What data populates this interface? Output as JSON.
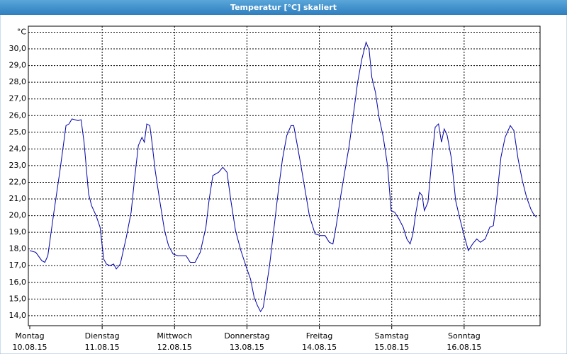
{
  "chart_data": {
    "type": "line",
    "title": "Temperatur [°C] skaliert",
    "y_unit": "°C",
    "x": [
      0,
      2,
      4,
      5,
      6,
      8,
      10,
      12,
      13,
      14,
      16,
      17,
      18,
      19.5,
      20.5,
      22,
      23.3,
      24.5,
      25.4,
      26.6,
      27.8,
      28.7,
      30,
      32,
      33.6,
      34.8,
      36,
      37.2,
      38,
      38.8,
      39.8,
      40.5,
      41.6,
      43,
      44.7,
      46,
      47.5,
      49,
      51.8,
      53.2,
      54.8,
      56.5,
      58.4,
      59.5,
      60.7,
      62.6,
      64,
      65.4,
      66.6,
      68.2,
      70,
      72,
      73.2,
      74.4,
      75.5,
      76.5,
      77.4,
      78.4,
      79.5,
      81,
      82.4,
      83.8,
      85.2,
      86.6,
      87.5,
      88.5,
      89.9,
      91.3,
      92.7,
      94.6,
      96.5,
      97.9,
      99.3,
      100.5,
      101.6,
      103,
      104.5,
      105.9,
      107.3,
      108.7,
      110.1,
      111.5,
      112.5,
      113.4,
      114.6,
      115.8,
      117.2,
      118.6,
      119.8,
      121,
      122.4,
      123.8,
      125,
      126.1,
      127,
      128,
      129.2,
      130.1,
      130.8,
      132,
      133.2,
      134.4,
      135.5,
      136.5,
      137.4,
      138.4,
      139.8,
      141.2,
      142.6,
      144,
      145.4,
      146.8,
      148.2,
      149.4,
      151,
      152.5,
      153.7,
      154.8,
      156.2,
      157.6,
      159.3,
      160.5,
      161.9,
      163.3,
      164.7,
      166.1,
      167,
      168
    ],
    "series": [
      {
        "name": "Temperatur",
        "color": "#0000aa",
        "values": [
          17.9,
          17.8,
          17.3,
          17.2,
          17.6,
          20.2,
          22.7,
          25.4,
          25.5,
          25.8,
          25.7,
          25.75,
          24.4,
          21.3,
          20.6,
          20.0,
          19.3,
          17.4,
          17.1,
          17.0,
          17.1,
          16.8,
          17.1,
          18.7,
          20.2,
          22.3,
          24.2,
          24.7,
          24.4,
          25.5,
          25.4,
          24.4,
          22.7,
          21.0,
          19.1,
          18.2,
          17.7,
          17.6,
          17.6,
          17.2,
          17.2,
          17.8,
          19.3,
          21.0,
          22.4,
          22.6,
          22.9,
          22.6,
          21.0,
          19.1,
          17.9,
          16.8,
          16.2,
          15.1,
          14.6,
          14.25,
          14.5,
          15.7,
          17.0,
          19.3,
          21.5,
          23.4,
          24.8,
          25.4,
          25.4,
          24.4,
          23.0,
          21.5,
          20.0,
          18.9,
          18.8,
          18.8,
          18.4,
          18.3,
          19.4,
          21.1,
          22.7,
          24.2,
          26.1,
          28.0,
          29.4,
          30.4,
          29.95,
          28.3,
          27.4,
          25.9,
          24.7,
          23.0,
          20.3,
          20.2,
          19.8,
          19.3,
          18.6,
          18.3,
          18.9,
          20.2,
          21.4,
          21.2,
          20.3,
          20.8,
          23.2,
          25.3,
          25.5,
          24.4,
          25.2,
          24.8,
          23.4,
          20.9,
          19.8,
          18.8,
          17.9,
          18.3,
          18.6,
          18.4,
          18.6,
          19.3,
          19.4,
          21.0,
          23.5,
          24.7,
          25.4,
          25.1,
          23.4,
          22.1,
          21.1,
          20.4,
          20.1,
          19.9
        ]
      }
    ],
    "xlim": [
      0,
      168
    ],
    "xticks": [
      {
        "value": 0,
        "label": "Montag"
      },
      {
        "value": 24,
        "label": "Dienstag"
      },
      {
        "value": 48,
        "label": "Mittwoch"
      },
      {
        "value": 72,
        "label": "Donnerstag"
      },
      {
        "value": 96,
        "label": "Freitag"
      },
      {
        "value": 120,
        "label": "Samstag"
      },
      {
        "value": 144,
        "label": "Sonntag"
      }
    ],
    "xtick_dates": [
      "10.08.15",
      "11.08.15",
      "12.08.15",
      "13.08.15",
      "14.08.15",
      "15.08.15",
      "16.08.15"
    ],
    "ylim": [
      13.4,
      31
    ],
    "yticks": [
      {
        "value": 14,
        "label": "14,0"
      },
      {
        "value": 15,
        "label": "15,0"
      },
      {
        "value": 16,
        "label": "16,0"
      },
      {
        "value": 17,
        "label": "17,0"
      },
      {
        "value": 18,
        "label": "18,0"
      },
      {
        "value": 19,
        "label": "19,0"
      },
      {
        "value": 20,
        "label": "20,0"
      },
      {
        "value": 21,
        "label": "21,0"
      },
      {
        "value": 22,
        "label": "22,0"
      },
      {
        "value": 23,
        "label": "23,0"
      },
      {
        "value": 24,
        "label": "24,0"
      },
      {
        "value": 25,
        "label": "25,0"
      },
      {
        "value": 26,
        "label": "26,0"
      },
      {
        "value": 27,
        "label": "27,0"
      },
      {
        "value": 28,
        "label": "28,0"
      },
      {
        "value": 29,
        "label": "29,0"
      },
      {
        "value": 30,
        "label": "30,0"
      }
    ],
    "grid": true
  }
}
